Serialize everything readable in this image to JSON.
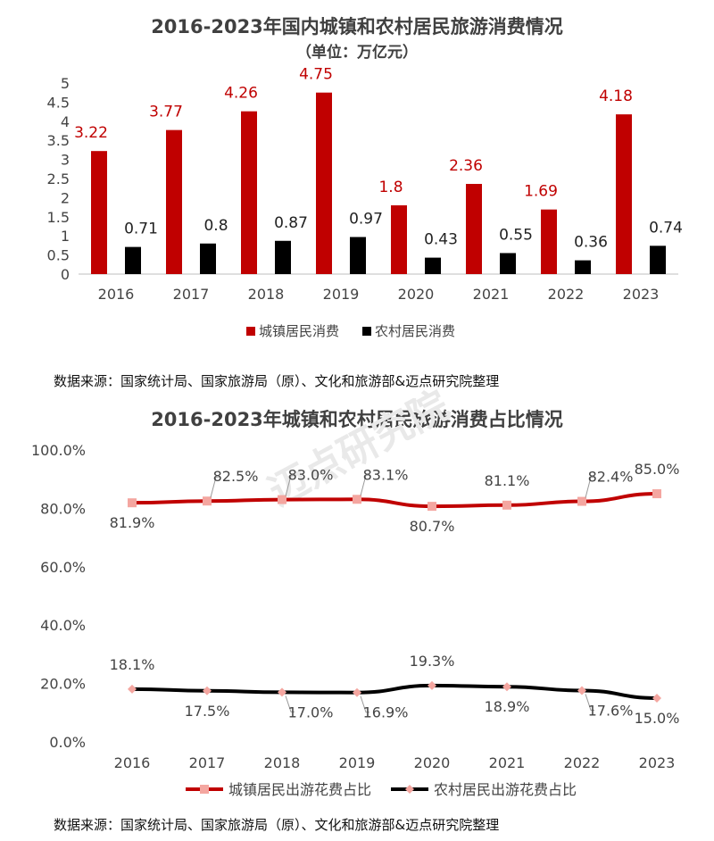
{
  "source_text": "数据来源：国家统计局、国家旅游局（原）、文化和旅游部&迈点研究院整理",
  "watermark": "迈点研究院",
  "colors": {
    "urban": "#c00000",
    "rural": "#000000",
    "urban_marker": "#f4a6a0"
  },
  "chart_data": [
    {
      "type": "bar",
      "title": "2016-2023年国内城镇和农村居民旅游消费情况",
      "subtitle": "（单位：万亿元）",
      "categories": [
        "2016",
        "2017",
        "2018",
        "2019",
        "2020",
        "2021",
        "2022",
        "2023"
      ],
      "series": [
        {
          "name": "城镇居民消费",
          "values": [
            3.22,
            3.77,
            4.26,
            4.75,
            1.8,
            2.36,
            1.69,
            4.18
          ]
        },
        {
          "name": "农村居民消费",
          "values": [
            0.71,
            0.8,
            0.87,
            0.97,
            0.43,
            0.55,
            0.36,
            0.74
          ]
        }
      ],
      "y_ticks": [
        "0",
        "0.5",
        "1",
        "1.5",
        "2",
        "2.5",
        "3",
        "3.5",
        "4",
        "4.5",
        "5"
      ],
      "ylim": [
        0,
        5
      ],
      "legend_position": "bottom",
      "grid": false
    },
    {
      "type": "line",
      "title": "2016-2023年城镇和农村居民旅游消费占比情况",
      "categories": [
        "2016",
        "2017",
        "2018",
        "2019",
        "2020",
        "2021",
        "2022",
        "2023"
      ],
      "series": [
        {
          "name": "城镇居民出游花费占比",
          "values": [
            81.9,
            82.5,
            83.0,
            83.1,
            80.7,
            81.1,
            82.4,
            85.0
          ],
          "labels": [
            "81.9%",
            "82.5%",
            "83.0%",
            "83.1%",
            "80.7%",
            "81.1%",
            "82.4%",
            "85.0%"
          ]
        },
        {
          "name": "农村居民出游花费占比",
          "values": [
            18.1,
            17.5,
            17.0,
            16.9,
            19.3,
            18.9,
            17.6,
            15.0
          ],
          "labels": [
            "18.1%",
            "17.5%",
            "17.0%",
            "16.9%",
            "19.3%",
            "18.9%",
            "17.6%",
            "15.0%"
          ]
        }
      ],
      "y_ticks": [
        "0.0%",
        "20.0%",
        "40.0%",
        "60.0%",
        "80.0%",
        "100.0%"
      ],
      "ylim": [
        0,
        100
      ],
      "legend_position": "bottom",
      "grid": false
    }
  ]
}
